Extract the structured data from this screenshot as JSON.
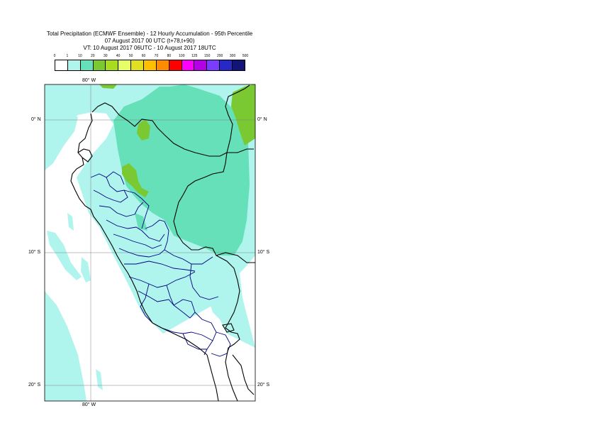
{
  "title": {
    "line1": "Total Precipitation (ECMWF Ensemble) - 12 Hourly Accumulation - 95th Percentile",
    "line2": "07 August 2017 00 UTC (t+78,t+90)",
    "line3": "VT: 10 August 2017 06UTC - 10 August 2017 18UTC"
  },
  "colorbar": {
    "labels": [
      "0",
      "1",
      "10",
      "20",
      "30",
      "40",
      "50",
      "60",
      "70",
      "80",
      "100",
      "125",
      "150",
      "200",
      "300",
      "500"
    ],
    "colors": [
      "#ffffff",
      "#b0f4ee",
      "#66e0b8",
      "#7ac832",
      "#a8dc1e",
      "#e6ff66",
      "#e0e020",
      "#ffc000",
      "#ff8c00",
      "#ff0000",
      "#ff00ff",
      "#b400e6",
      "#7a3cff",
      "#2828c8",
      "#141478"
    ]
  },
  "map": {
    "lon_label_top": "80° W",
    "lon_label_bottom": "80° W",
    "lat_labels_left": [
      "0° N",
      "10° S",
      "20° S"
    ],
    "lat_labels_right": [
      "0° N",
      "10° S",
      "20° S"
    ],
    "colors": {
      "ocean": "#ffffff",
      "light_precip": "#b0f4ee",
      "moderate_precip": "#66e0b8",
      "heavy_precip": "#7ac832",
      "coastline": "#000000",
      "borders": "#000080",
      "gridlines": "#808080"
    }
  }
}
